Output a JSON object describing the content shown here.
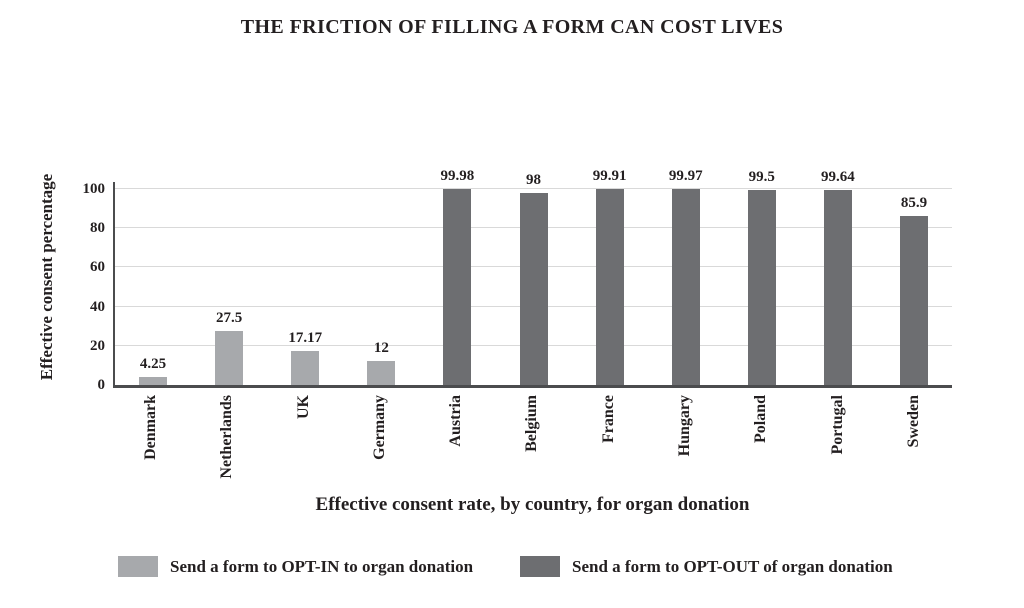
{
  "title": "THE FRICTION OF FILLING A FORM CAN COST LIVES",
  "chart_data": {
    "type": "bar",
    "title": "THE FRICTION OF FILLING A FORM CAN COST LIVES",
    "categories": [
      "Denmark",
      "Netherlands",
      "UK",
      "Germany",
      "Austria",
      "Belgium",
      "France",
      "Hungary",
      "Poland",
      "Portugal",
      "Sweden"
    ],
    "values": [
      4.25,
      27.5,
      17.17,
      12,
      99.98,
      98,
      99.91,
      99.97,
      99.5,
      99.64,
      85.9
    ],
    "value_labels": [
      "4.25",
      "27.5",
      "17.17",
      "12",
      "99.98",
      "98",
      "99.91",
      "99.97",
      "99.5",
      "99.64",
      "85.9"
    ],
    "bar_series": [
      0,
      0,
      0,
      0,
      1,
      1,
      1,
      1,
      1,
      1,
      1
    ],
    "xlabel": "Effective consent rate, by country, for organ donation",
    "ylabel": "Effective consent percentage",
    "yticks": [
      0,
      20,
      40,
      60,
      80,
      100
    ],
    "ylim": [
      0,
      105
    ],
    "grid": "horizontal",
    "legend": {
      "position": "bottom",
      "entries": [
        {
          "label": "Send a form to OPT-IN to organ donation",
          "color": "#a7a9ac"
        },
        {
          "label": "Send a form to OPT-OUT of organ donation",
          "color": "#6d6e71"
        }
      ]
    }
  },
  "colors": {
    "opt_in_bar": "#a7a9ac",
    "opt_out_bar": "#6d6e71",
    "text": "#231f20",
    "gridline": "#d9d9d9",
    "axis_line": "#4b4c4e",
    "background": "#ffffff"
  }
}
